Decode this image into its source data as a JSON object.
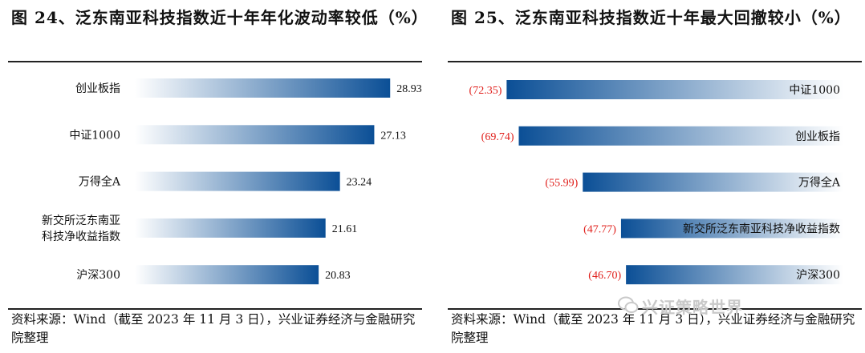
{
  "chart_data": [
    {
      "type": "bar",
      "orientation": "horizontal",
      "title": "图 24、泛东南亚科技指数近十年年化波动率较低（%）",
      "categories": [
        "创业板指",
        "中证1000",
        "万得全A",
        "新交所泛东南亚科技净收益指数",
        "沪深300"
      ],
      "category_lines": [
        [
          "创业板指"
        ],
        [
          "中证1000"
        ],
        [
          "万得全A"
        ],
        [
          "新交所泛东南亚",
          "科技净收益指数"
        ],
        [
          "沪深300"
        ]
      ],
      "values": [
        28.93,
        27.13,
        23.24,
        21.61,
        20.83
      ],
      "value_labels": [
        "28.93",
        "27.13",
        "23.24",
        "21.61",
        "20.83"
      ],
      "xlim": [
        0,
        30
      ],
      "grid": false,
      "source": "资料来源：Wind（截至 2023 年 11 月 3 日），兴业证券经济与金融研究院整理"
    },
    {
      "type": "bar",
      "orientation": "horizontal",
      "title": "图 25、泛东南亚科技指数近十年最大回撤较小（%）",
      "categories": [
        "中证1000",
        "创业板指",
        "万得全A",
        "新交所泛东南亚科技净收益指数",
        "沪深300"
      ],
      "values": [
        -72.35,
        -69.74,
        -55.99,
        -47.77,
        -46.7
      ],
      "value_labels": [
        "(72.35)",
        "(69.74)",
        "(55.99)",
        "(47.77)",
        "(46.70)"
      ],
      "xlim": [
        -75,
        0
      ],
      "grid": false,
      "source": "资料来源：Wind（截至 2023 年 11 月 3 日），兴业证券经济与金融研究院整理"
    }
  ],
  "colors": {
    "bar_dark": "#0b4f96",
    "bar_light": "#ffffff",
    "negative_label": "#e0201c",
    "panel_bg": "#ffffff",
    "rule": "#222222"
  },
  "watermark": "兴证策略世界"
}
